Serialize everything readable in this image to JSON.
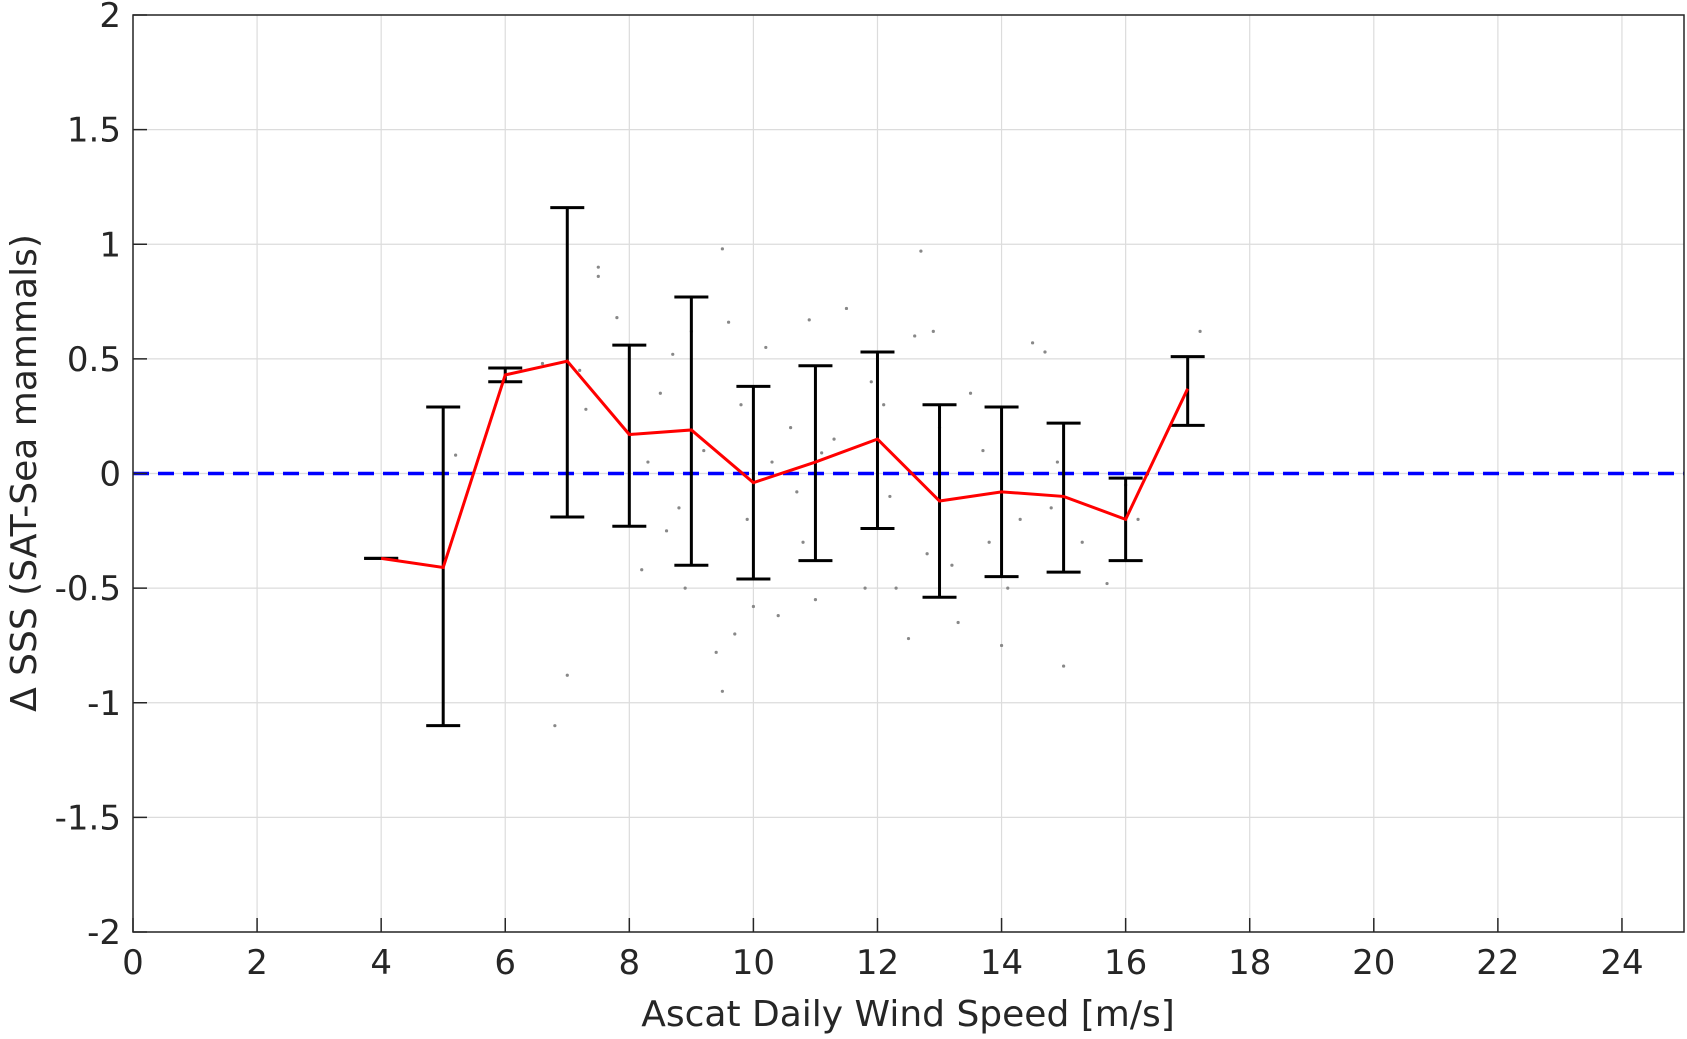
{
  "chart_data": {
    "type": "line",
    "xlabel": "Ascat Daily Wind Speed [m/s]",
    "ylabel": "Δ SSS (SAT-Sea mammals)",
    "xlim": [
      0,
      25
    ],
    "ylim": [
      -2,
      2
    ],
    "x_ticks": [
      0,
      2,
      4,
      6,
      8,
      10,
      12,
      14,
      16,
      18,
      20,
      22,
      24
    ],
    "y_ticks": [
      2,
      1.5,
      1,
      0.5,
      0,
      -0.5,
      -1,
      -1.5,
      -2
    ],
    "y_tick_labels": [
      "2",
      "1.5",
      "1",
      "0.5",
      "0",
      "-0.5",
      "-1",
      "-1.5",
      "-2"
    ],
    "grid": true,
    "reference_line": {
      "y": 0,
      "style": "dashed",
      "color": "#0000ff"
    },
    "mean_line": {
      "color": "#ff0000",
      "x": [
        4,
        5,
        6,
        7,
        8,
        9,
        10,
        11,
        12,
        13,
        14,
        15,
        16,
        17
      ],
      "y": [
        -0.37,
        -0.41,
        0.43,
        0.49,
        0.17,
        0.19,
        -0.04,
        0.05,
        0.15,
        -0.12,
        -0.08,
        -0.1,
        -0.2,
        0.37
      ]
    },
    "error_bars": {
      "color": "#000000",
      "x": [
        4,
        5,
        6,
        7,
        8,
        9,
        10,
        11,
        12,
        13,
        14,
        15,
        16,
        17
      ],
      "low": [
        -0.37,
        -1.1,
        0.4,
        -0.19,
        -0.23,
        -0.4,
        -0.46,
        -0.38,
        -0.24,
        -0.54,
        -0.45,
        -0.43,
        -0.38,
        0.21
      ],
      "high": [
        -0.37,
        0.29,
        0.46,
        1.16,
        0.56,
        0.77,
        0.38,
        0.47,
        0.53,
        0.3,
        0.29,
        0.22,
        -0.02,
        0.51
      ]
    },
    "scatter": {
      "color": "#888888",
      "points": [
        [
          5.2,
          0.08
        ],
        [
          6.6,
          0.48
        ],
        [
          6.8,
          -1.1
        ],
        [
          7.0,
          -0.88
        ],
        [
          7.2,
          0.45
        ],
        [
          7.3,
          0.28
        ],
        [
          7.5,
          0.9
        ],
        [
          7.5,
          0.86
        ],
        [
          7.8,
          0.68
        ],
        [
          8.2,
          -0.42
        ],
        [
          8.3,
          0.05
        ],
        [
          8.5,
          0.35
        ],
        [
          8.7,
          0.52
        ],
        [
          8.8,
          -0.15
        ],
        [
          8.9,
          -0.5
        ],
        [
          9.0,
          0.62
        ],
        [
          9.2,
          0.1
        ],
        [
          9.4,
          -0.78
        ],
        [
          9.5,
          -0.95
        ],
        [
          9.5,
          0.98
        ],
        [
          9.6,
          0.66
        ],
        [
          9.7,
          -0.7
        ],
        [
          9.8,
          0.3
        ],
        [
          10.0,
          -0.58
        ],
        [
          10.2,
          0.55
        ],
        [
          10.3,
          0.05
        ],
        [
          10.4,
          -0.62
        ],
        [
          10.6,
          0.2
        ],
        [
          10.8,
          -0.3
        ],
        [
          10.9,
          0.67
        ],
        [
          11.0,
          -0.55
        ],
        [
          11.3,
          0.15
        ],
        [
          11.5,
          0.72
        ],
        [
          11.8,
          -0.5
        ],
        [
          11.9,
          0.4
        ],
        [
          12.1,
          0.3
        ],
        [
          12.3,
          -0.5
        ],
        [
          12.5,
          -0.72
        ],
        [
          12.6,
          0.6
        ],
        [
          12.7,
          0.97
        ],
        [
          12.8,
          -0.35
        ],
        [
          12.9,
          0.62
        ],
        [
          13.0,
          0.2
        ],
        [
          13.2,
          -0.4
        ],
        [
          13.3,
          -0.65
        ],
        [
          13.5,
          0.35
        ],
        [
          13.8,
          -0.3
        ],
        [
          14.0,
          -0.75
        ],
        [
          14.1,
          -0.5
        ],
        [
          14.3,
          -0.2
        ],
        [
          14.5,
          0.57
        ],
        [
          14.7,
          0.53
        ],
        [
          14.9,
          0.05
        ],
        [
          15.0,
          -0.84
        ],
        [
          15.3,
          -0.3
        ],
        [
          15.7,
          -0.48
        ],
        [
          16.2,
          -0.2
        ],
        [
          17.2,
          0.62
        ],
        [
          11.1,
          0.09
        ],
        [
          10.7,
          -0.08
        ],
        [
          9.9,
          -0.2
        ],
        [
          8.6,
          -0.25
        ],
        [
          13.7,
          0.1
        ],
        [
          12.2,
          -0.1
        ],
        [
          14.8,
          -0.15
        ],
        [
          16.0,
          -0.05
        ]
      ]
    }
  }
}
